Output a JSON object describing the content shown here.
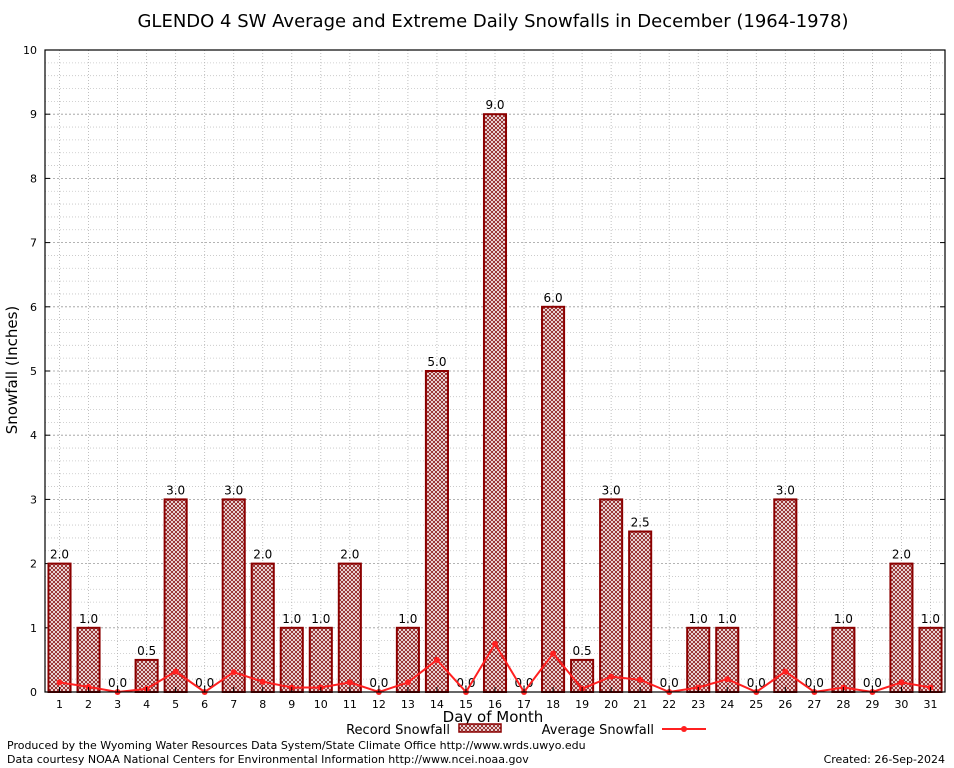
{
  "chart_data": {
    "type": "bar",
    "title": "GLENDO 4 SW Average and Extreme Daily Snowfalls in December (1964-1978)",
    "xlabel": "Day of Month",
    "ylabel": "Snowfall (Inches)",
    "ylim": [
      0,
      10
    ],
    "yticks": [
      "0",
      "1",
      "2",
      "3",
      "4",
      "5",
      "6",
      "7",
      "8",
      "9",
      "10"
    ],
    "grid": true,
    "legend_position": "bottom",
    "categories": [
      "1",
      "2",
      "3",
      "4",
      "5",
      "6",
      "7",
      "8",
      "9",
      "10",
      "11",
      "12",
      "13",
      "14",
      "15",
      "16",
      "17",
      "18",
      "19",
      "20",
      "21",
      "22",
      "23",
      "24",
      "25",
      "26",
      "27",
      "28",
      "29",
      "30",
      "31"
    ],
    "series": [
      {
        "name": "Record Snowfall",
        "type": "bar",
        "color": "#b22222",
        "values": [
          2.0,
          1.0,
          0.0,
          0.5,
          3.0,
          0.0,
          3.0,
          2.0,
          1.0,
          1.0,
          2.0,
          0.0,
          1.0,
          5.0,
          0.0,
          9.0,
          0.0,
          6.0,
          0.5,
          3.0,
          2.5,
          0.0,
          1.0,
          1.0,
          0.0,
          3.0,
          0.0,
          1.0,
          0.0,
          2.0,
          1.0
        ],
        "labels": [
          "2.0",
          "1.0",
          "0.0",
          "0.5",
          "3.0",
          "0.0",
          "3.0",
          "2.0",
          "1.0",
          "1.0",
          "2.0",
          "0.0",
          "1.0",
          "5.0",
          "0.0",
          "9.0",
          "0.0",
          "6.0",
          "0.5",
          "3.0",
          "2.5",
          "0.0",
          "1.0",
          "1.0",
          "0.0",
          "3.0",
          "0.0",
          "1.0",
          "0.0",
          "2.0",
          "1.0"
        ]
      },
      {
        "name": "Average Snowfall",
        "type": "line",
        "color": "#ff2020",
        "values": [
          0.15,
          0.08,
          0.0,
          0.05,
          0.32,
          0.0,
          0.31,
          0.16,
          0.07,
          0.07,
          0.15,
          0.0,
          0.15,
          0.5,
          0.0,
          0.75,
          0.0,
          0.6,
          0.05,
          0.24,
          0.19,
          0.0,
          0.07,
          0.2,
          0.0,
          0.32,
          0.0,
          0.07,
          0.0,
          0.15,
          0.07
        ]
      }
    ]
  },
  "footer": {
    "produced_by": "Produced by the Wyoming Water Resources Data System/State Climate Office http://www.wrds.uwyo.edu",
    "data_courtesy": "Data courtesy NOAA National Centers for Environmental Information http://www.ncei.noaa.gov",
    "created": "Created:  26-Sep-2024"
  }
}
